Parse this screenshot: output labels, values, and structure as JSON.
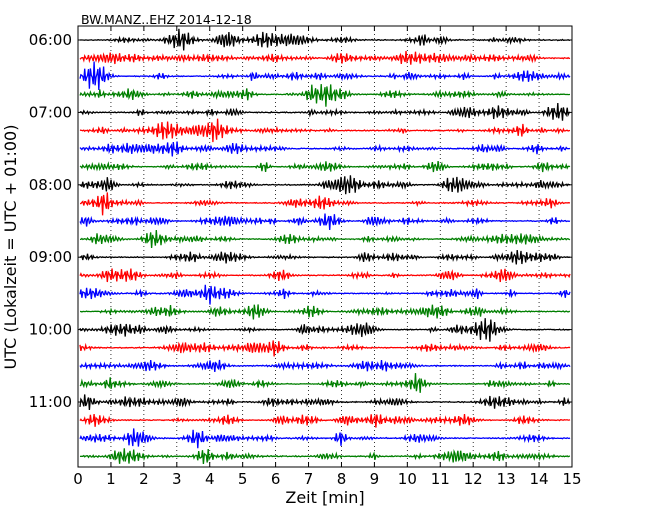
{
  "chart_data": {
    "type": "line",
    "title": "BW.MANZ..EHZ 2014-12-18",
    "xlabel": "Zeit  [min]",
    "ylabel": "UTC (Lokalzeit = UTC + 01:00)",
    "xlim": [
      0,
      15
    ],
    "x_ticks": [
      "0",
      "1",
      "2",
      "3",
      "4",
      "5",
      "6",
      "7",
      "8",
      "9",
      "10",
      "11",
      "12",
      "13",
      "14",
      "15"
    ],
    "y_tick_labels": [
      "06:00",
      "07:00",
      "08:00",
      "09:00",
      "10:00",
      "11:00"
    ],
    "rows_per_hour": 4,
    "grid": "vertical dotted",
    "row_colors": [
      "#000000",
      "#ff0000",
      "#0000ff",
      "#007f00"
    ],
    "rows": [
      {
        "start": "06:00"
      },
      {
        "start": "06:15"
      },
      {
        "start": "06:30"
      },
      {
        "start": "06:45"
      },
      {
        "start": "07:00"
      },
      {
        "start": "07:15"
      },
      {
        "start": "07:30"
      },
      {
        "start": "07:45"
      },
      {
        "start": "08:00"
      },
      {
        "start": "08:15"
      },
      {
        "start": "08:30"
      },
      {
        "start": "08:45"
      },
      {
        "start": "09:00"
      },
      {
        "start": "09:15"
      },
      {
        "start": "09:30"
      },
      {
        "start": "09:45"
      },
      {
        "start": "10:00"
      },
      {
        "start": "10:15"
      },
      {
        "start": "10:30"
      },
      {
        "start": "10:45"
      },
      {
        "start": "11:00"
      },
      {
        "start": "11:15"
      },
      {
        "start": "11:30"
      },
      {
        "start": "11:45"
      }
    ]
  }
}
